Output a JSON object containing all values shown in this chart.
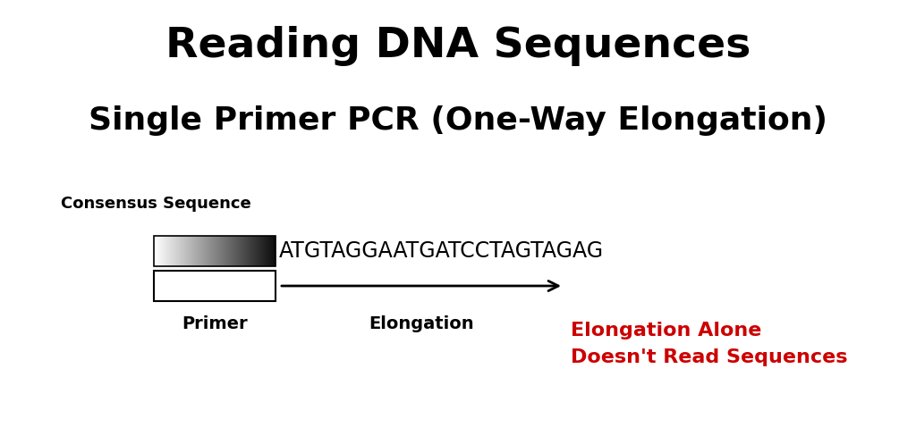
{
  "title": "Reading DNA Sequences",
  "subtitle": "Single Primer PCR (One-Way Elongation)",
  "consensus_label": "Consensus Sequence",
  "dna_sequence": "ATGTAGGAATGATCCTAGTAGAG",
  "primer_label": "Primer",
  "elongation_label": "Elongation",
  "red_line1": "Elongation Alone",
  "red_line2": "Doesn't Read Sequences",
  "bg_color": "#ffffff",
  "title_color": "#000000",
  "red_color": "#cc0000",
  "black_color": "#000000",
  "title_fontsize": 34,
  "subtitle_fontsize": 26,
  "consensus_fontsize": 13,
  "dna_fontsize": 17,
  "label_fontsize": 14,
  "red_fontsize": 16,
  "fig_w": 10.24,
  "fig_h": 4.88,
  "dpi": 100
}
